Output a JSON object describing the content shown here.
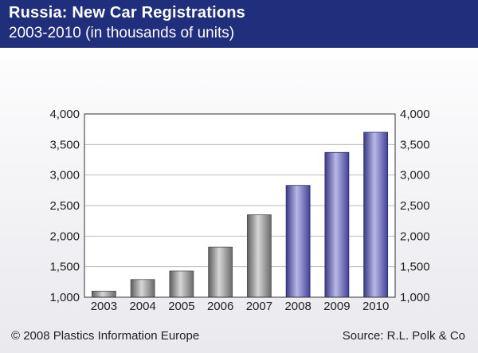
{
  "header": {
    "title": "Russia: New Car Registrations",
    "subtitle": "2003-2010 (in thousands of units)"
  },
  "footer": {
    "copyright": "© 2008 Plastics Information Europe",
    "source": "Source: R.L. Polk & Co"
  },
  "colors": {
    "header_bg": "#1f2f7c",
    "actual_bar": "#8a8a8a",
    "forecast_bar": "#5c5aa8"
  },
  "chart_data": {
    "type": "bar",
    "title": "Russia: New Car Registrations",
    "subtitle": "2003-2010 (in thousands of units)",
    "xlabel": "",
    "ylabel": "",
    "categories": [
      "2003",
      "2004",
      "2005",
      "2006",
      "2007",
      "2008",
      "2009",
      "2010"
    ],
    "values": [
      1100,
      1290,
      1430,
      1820,
      2350,
      2830,
      3370,
      3700
    ],
    "bar_styles": [
      "gray",
      "gray",
      "gray",
      "gray",
      "gray",
      "blue",
      "blue",
      "blue"
    ],
    "ylim": [
      1000,
      4000
    ],
    "yticks": [
      1000,
      1500,
      2000,
      2500,
      3000,
      3500,
      4000
    ],
    "ytick_labels": [
      "1,000",
      "1,500",
      "2,000",
      "2,500",
      "3,000",
      "3,500",
      "4,000"
    ],
    "y_axis_both_sides": true,
    "grid": true,
    "legend": "none"
  }
}
